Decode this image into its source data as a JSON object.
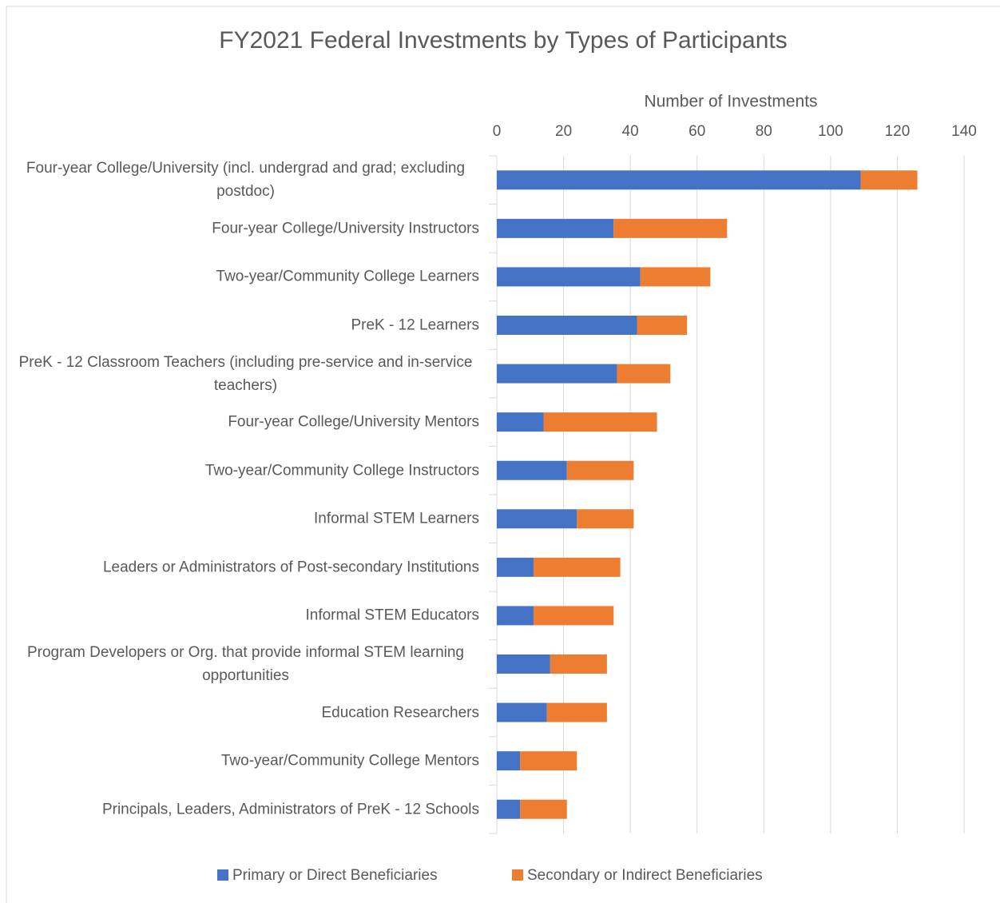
{
  "chart_data": {
    "type": "stacked_barh",
    "title": "FY2021 Federal Investments by Types of Participants",
    "x_label": "Number of Investments",
    "categories": [
      "Four-year College/University (incl. undergrad and grad; excluding postdoc)",
      "Four-year College/University Instructors",
      "Two-year/Community College Learners",
      "PreK - 12 Learners",
      "PreK - 12 Classroom Teachers (including pre-service and in-service teachers)",
      "Four-year College/University Mentors",
      "Two-year/Community College Instructors",
      "Informal STEM Learners",
      "Leaders or Administrators of Post-secondary Institutions",
      "Informal STEM Educators",
      "Program Developers or Org. that provide informal STEM learning opportunities",
      "Education Researchers",
      "Two-year/Community College Mentors",
      "Principals, Leaders, Administrators of PreK - 12 Schools"
    ],
    "series": [
      {
        "name": "Primary or Direct Beneficiaries",
        "color": "#4472c4",
        "values": [
          109,
          35,
          43,
          42,
          36,
          14,
          21,
          24,
          11,
          11,
          16,
          15,
          7,
          7
        ]
      },
      {
        "name": "Secondary or Indirect Beneficiaries",
        "color": "#ed7d31",
        "values": [
          17,
          34,
          21,
          15,
          16,
          34,
          20,
          17,
          26,
          24,
          17,
          18,
          17,
          14
        ]
      }
    ],
    "xlim": [
      0,
      140
    ],
    "xticks": [
      0,
      20,
      40,
      60,
      80,
      100,
      120,
      140
    ],
    "grid": true,
    "legend": "bottom"
  }
}
